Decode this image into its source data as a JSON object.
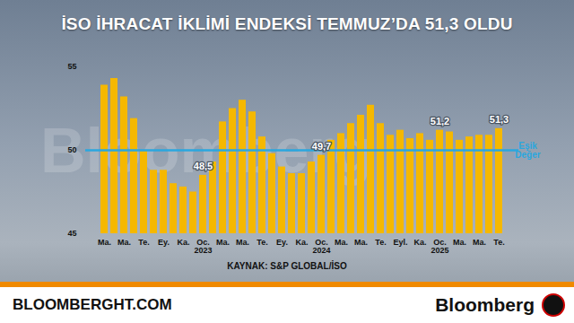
{
  "chart_data": {
    "type": "bar",
    "title": "İSO İHRACAT İKLİMİ ENDEKSİ TEMMUZ’DA 51,3 OLDU",
    "source": "KAYNAK: S&P GLOBAL/İSO",
    "watermark": "Bloomberg",
    "footer": {
      "left": "BLOOMBERGHT.COM",
      "right": "Bloomberg"
    },
    "categories": [
      "Ma.",
      null,
      "Ma.",
      null,
      "Te.",
      null,
      "Ey.",
      null,
      "Ka.",
      null,
      "Oc.",
      null,
      "Ma.",
      null,
      "Ma.",
      null,
      "Te.",
      null,
      "Ey.",
      null,
      "Ka.",
      null,
      "Oc.",
      null,
      "Ma.",
      null,
      "Ma.",
      null,
      "Te.",
      null,
      "Eyl.",
      null,
      "Ka.",
      null,
      "Oc.",
      null,
      "Ma.",
      null,
      "Ma.",
      null,
      "Te."
    ],
    "year_labels": [
      {
        "category_index": 10,
        "label": "2023"
      },
      {
        "category_index": 22,
        "label": "2024"
      },
      {
        "category_index": 34,
        "label": "2025"
      }
    ],
    "values": [
      53.9,
      54.3,
      53.2,
      51.9,
      50.0,
      48.8,
      48.8,
      48.0,
      47.8,
      47.5,
      48.5,
      49.3,
      51.7,
      52.5,
      53.0,
      52.3,
      50.8,
      49.8,
      49.0,
      48.6,
      48.6,
      49.3,
      49.7,
      50.6,
      51.0,
      51.6,
      52.1,
      52.7,
      51.6,
      50.9,
      51.2,
      50.7,
      51.0,
      50.6,
      51.2,
      51.1,
      50.6,
      50.8,
      50.9,
      50.9,
      51.3
    ],
    "color": "#f5b800",
    "annotations": [
      {
        "category_index": 10,
        "label": "48,5"
      },
      {
        "category_index": 22,
        "label": "49,7"
      },
      {
        "category_index": 34,
        "label": "51,2"
      },
      {
        "category_index": 40,
        "label": "51,3"
      }
    ],
    "threshold": {
      "value": 50,
      "label": "Eşik Değer",
      "color": "#2aa7df"
    },
    "ylim": [
      45,
      55
    ],
    "yticks": [
      45,
      50,
      55
    ],
    "grid": false
  }
}
